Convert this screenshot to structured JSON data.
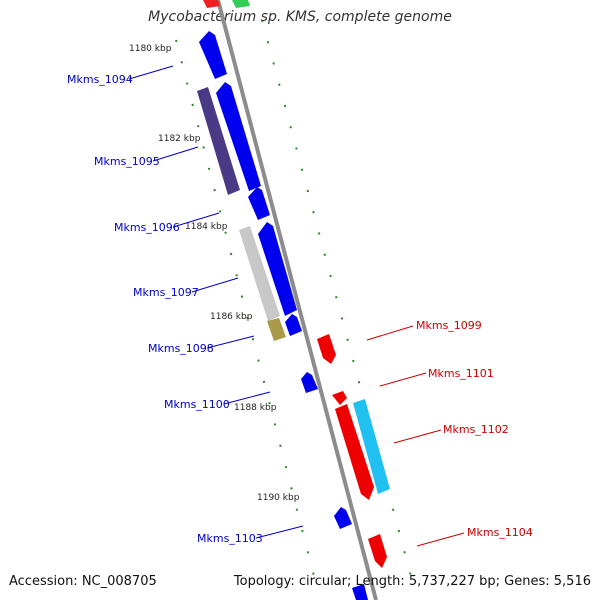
{
  "title": "Mycobacterium sp. KMS, complete genome",
  "footer": {
    "accession": "Accession: NC_008705",
    "summary": "Topology: circular; Length: 5,737,227 bp; Genes: 5,516"
  },
  "colors": {
    "backbone": "#8c8c8c",
    "gene_blue": "#0000ee",
    "gene_red": "#ee0000",
    "gene_cyan": "#20c0f0",
    "gene_navy": "#4a3a86",
    "gene_gray": "#c8c8c8",
    "gene_olive": "#a89a48",
    "tick_green": "#2a8a2a",
    "label_blue": "#0000cc",
    "label_red": "#cc0000"
  },
  "ticks": [
    {
      "label": "1180 kbp"
    },
    {
      "label": "1182 kbp"
    },
    {
      "label": "1184 kbp"
    },
    {
      "label": "1186 kbp"
    },
    {
      "label": "1188 kbp"
    },
    {
      "label": "1190 kbp"
    }
  ],
  "labels": {
    "mkms_1094": "Mkms_1094",
    "mkms_1095": "Mkms_1095",
    "mkms_1096": "Mkms_1096",
    "mkms_1097": "Mkms_1097",
    "mkms_1098": "Mkms_1098",
    "mkms_1099": "Mkms_1099",
    "mkms_1100": "Mkms_1100",
    "mkms_1101": "Mkms_1101",
    "mkms_1102": "Mkms_1102",
    "mkms_1103": "Mkms_1103",
    "mkms_1104": "Mkms_1104"
  }
}
